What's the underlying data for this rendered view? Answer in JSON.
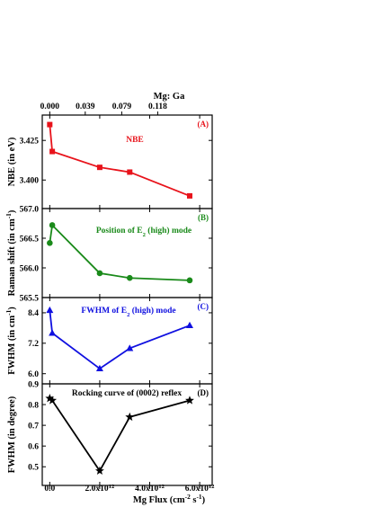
{
  "chart_data": {
    "type": "line",
    "top_axis": {
      "label": "Mg: Ga",
      "ticks": [
        "0.000",
        "0.039",
        "0.079",
        "0.118"
      ]
    },
    "bottom_axis": {
      "label": "Mg Flux (cm⁻² s⁻¹)",
      "ticks": [
        {
          "value": 0,
          "text": "0.0"
        },
        {
          "value": 2000000000000.0,
          "text": "2.0x10¹²"
        },
        {
          "value": 4000000000000.0,
          "text": "4.0x10¹²"
        },
        {
          "value": 6000000000000.0,
          "text": "6.0x10¹²"
        }
      ],
      "xlim": [
        -300000000000.0,
        6500000000000.0
      ]
    },
    "panels": [
      {
        "id": "A",
        "panel_label": "(A)",
        "annotation": "NBE",
        "ylabel": "NBE (in eV)",
        "color": "#e8131b",
        "marker": "square",
        "ylim": [
          3.382,
          3.441
        ],
        "yticks": [
          {
            "value": 3.4,
            "text": "3.400"
          },
          {
            "value": 3.425,
            "text": "3.425"
          }
        ],
        "x": [
          0,
          100000000000.0,
          2000000000000.0,
          3200000000000.0,
          5600000000000.0
        ],
        "y": [
          3.435,
          3.418,
          3.408,
          3.405,
          3.39
        ]
      },
      {
        "id": "B",
        "panel_label": "(B)",
        "annotation": "Position of E2 (high) mode",
        "ylabel": "Raman shift (in cm⁻¹)",
        "color": "#1a8a1a",
        "marker": "circle",
        "ylim": [
          565.5,
          567.0
        ],
        "yticks": [
          {
            "value": 565.5,
            "text": "565.5"
          },
          {
            "value": 566.0,
            "text": "566.0"
          },
          {
            "value": 566.5,
            "text": "566.5"
          },
          {
            "value": 567.0,
            "text": "567.0"
          }
        ],
        "x": [
          0,
          100000000000.0,
          2000000000000.0,
          3200000000000.0,
          5600000000000.0
        ],
        "y": [
          566.42,
          566.72,
          565.91,
          565.83,
          565.79
        ]
      },
      {
        "id": "C",
        "panel_label": "(C)",
        "annotation": "FWHM of E2 (high) mode",
        "ylabel": "FWHM (in cm⁻¹)",
        "color": "#1010e0",
        "marker": "triangle",
        "ylim": [
          5.6,
          9.0
        ],
        "yticks": [
          {
            "value": 6.0,
            "text": "6.0"
          },
          {
            "value": 7.2,
            "text": "7.2"
          },
          {
            "value": 8.4,
            "text": "8.4"
          }
        ],
        "x": [
          0,
          100000000000.0,
          2000000000000.0,
          3200000000000.0,
          5600000000000.0
        ],
        "y": [
          8.5,
          7.6,
          6.2,
          7.0,
          7.9
        ]
      },
      {
        "id": "D",
        "panel_label": "(D)",
        "annotation": "Rocking curve of (0002) reflex",
        "ylabel": "FWHM (in degree)",
        "color": "#000000",
        "marker": "star",
        "ylim": [
          0.41,
          0.9
        ],
        "yticks": [
          {
            "value": 0.5,
            "text": "0.5"
          },
          {
            "value": 0.6,
            "text": "0.6"
          },
          {
            "value": 0.7,
            "text": "0.7"
          },
          {
            "value": 0.8,
            "text": "0.8"
          },
          {
            "value": 0.9,
            "text": "0.9"
          }
        ],
        "x": [
          0,
          100000000000.0,
          2000000000000.0,
          3200000000000.0,
          5600000000000.0
        ],
        "y": [
          0.83,
          0.82,
          0.48,
          0.74,
          0.82
        ]
      }
    ]
  }
}
